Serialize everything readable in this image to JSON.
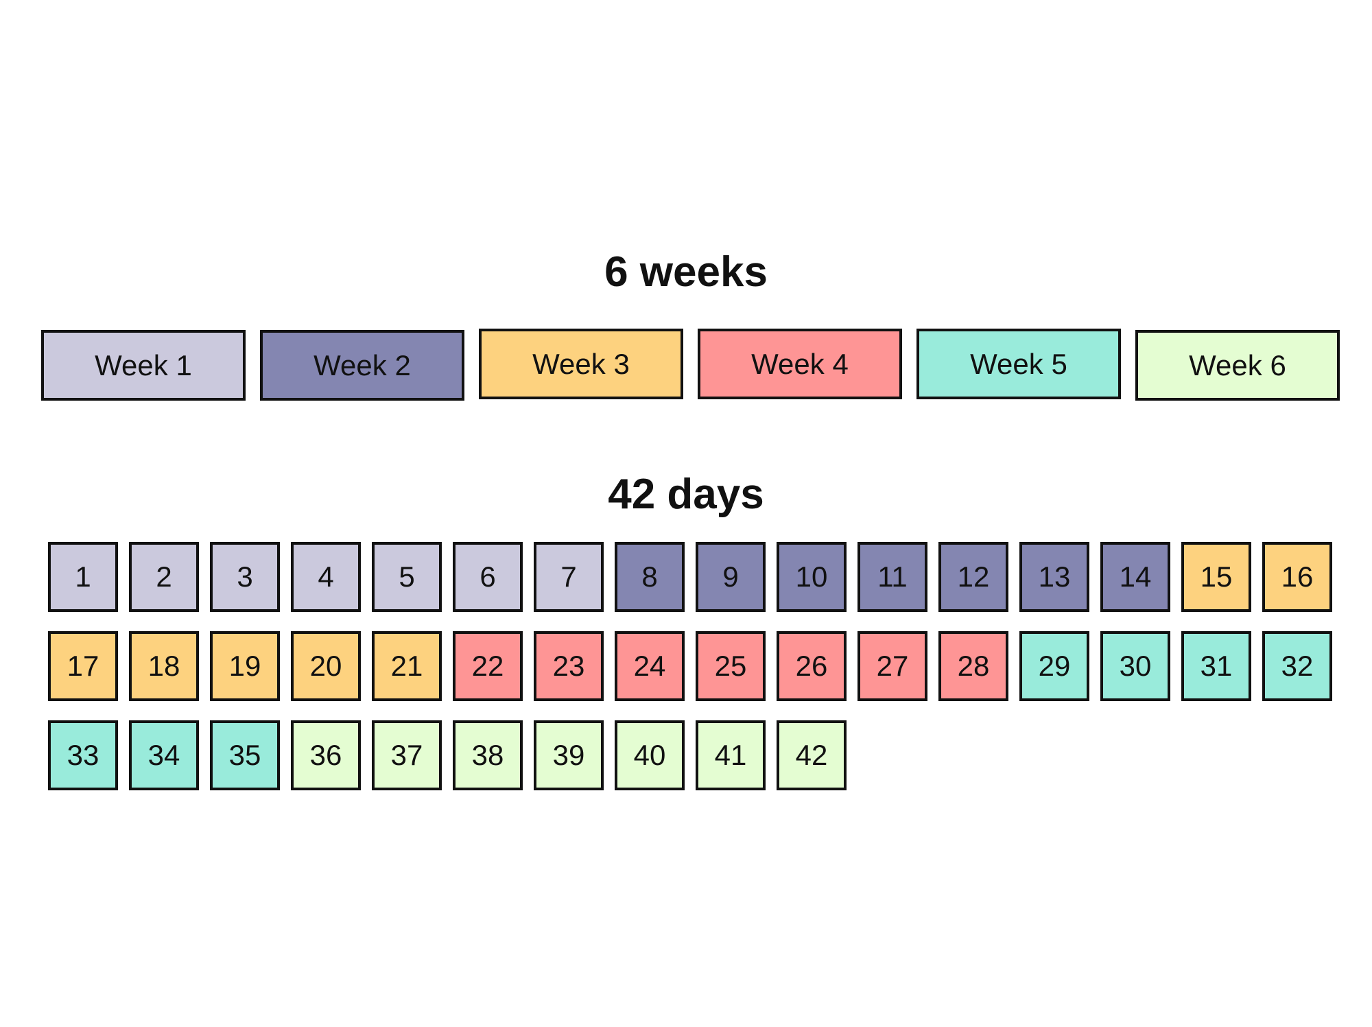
{
  "weeks_title": "6 weeks",
  "days_title": "42 days",
  "colors": {
    "week1": "#cbc9dd",
    "week2": "#8486b1",
    "week3": "#fdd27f",
    "week4": "#fe9595",
    "week5": "#99ebdb",
    "week6": "#e4fdd2"
  },
  "weeks": [
    {
      "label": "Week 1",
      "color": "#cbc9dd"
    },
    {
      "label": "Week 2",
      "color": "#8486b1"
    },
    {
      "label": "Week 3",
      "color": "#fdd27f"
    },
    {
      "label": "Week 4",
      "color": "#fe9595"
    },
    {
      "label": "Week 5",
      "color": "#99ebdb"
    },
    {
      "label": "Week 6",
      "color": "#e4fdd2"
    }
  ],
  "days": [
    "1",
    "2",
    "3",
    "4",
    "5",
    "6",
    "7",
    "8",
    "9",
    "10",
    "11",
    "12",
    "13",
    "14",
    "15",
    "16",
    "17",
    "18",
    "19",
    "20",
    "21",
    "22",
    "23",
    "24",
    "25",
    "26",
    "27",
    "28",
    "29",
    "30",
    "31",
    "32",
    "33",
    "34",
    "35",
    "36",
    "37",
    "38",
    "39",
    "40",
    "41",
    "42"
  ]
}
